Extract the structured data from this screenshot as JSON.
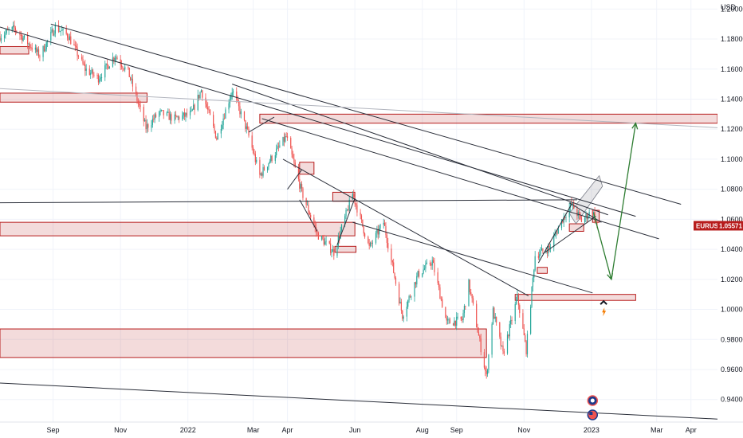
{
  "chart_data": {
    "type": "candlestick",
    "symbol": "EURUSD",
    "currency_label": "USD",
    "last_price_label": "1.05571",
    "last_price": 1.05571,
    "ylim": [
      0.925,
      1.206
    ],
    "xlim": [
      "2021-07-15",
      "2023-04-25"
    ],
    "y_ticks": [
      {
        "v": 1.2,
        "label": "1.20000"
      },
      {
        "v": 1.18,
        "label": "1.18000"
      },
      {
        "v": 1.16,
        "label": "1.16000"
      },
      {
        "v": 1.14,
        "label": "1.14000"
      },
      {
        "v": 1.12,
        "label": "1.12000"
      },
      {
        "v": 1.1,
        "label": "1.10000"
      },
      {
        "v": 1.08,
        "label": "1.08000"
      },
      {
        "v": 1.06,
        "label": "1.06000"
      },
      {
        "v": 1.04,
        "label": "1.04000"
      },
      {
        "v": 1.02,
        "label": "1.02000"
      },
      {
        "v": 1.0,
        "label": "1.00000"
      },
      {
        "v": 0.98,
        "label": "0.98000"
      },
      {
        "v": 0.96,
        "label": "0.96000"
      },
      {
        "v": 0.94,
        "label": "0.94000"
      }
    ],
    "x_ticks": [
      {
        "d": "2021-09-01",
        "label": "Sep"
      },
      {
        "d": "2021-11-01",
        "label": "Nov"
      },
      {
        "d": "2022-01-01",
        "label": "2022"
      },
      {
        "d": "2022-03-01",
        "label": "Mar"
      },
      {
        "d": "2022-04-01",
        "label": "Apr"
      },
      {
        "d": "2022-06-01",
        "label": "Jun"
      },
      {
        "d": "2022-08-01",
        "label": "Aug"
      },
      {
        "d": "2022-09-01",
        "label": "Sep"
      },
      {
        "d": "2022-11-01",
        "label": "Nov"
      },
      {
        "d": "2023-01-01",
        "label": "2023"
      },
      {
        "d": "2023-03-01",
        "label": "Mar"
      },
      {
        "d": "2023-04-01",
        "label": "Apr"
      }
    ],
    "price_path": [
      [
        "2021-07-15",
        1.182
      ],
      [
        "2021-07-28",
        1.187
      ],
      [
        "2021-08-06",
        1.18
      ],
      [
        "2021-08-20",
        1.169
      ],
      [
        "2021-09-03",
        1.188
      ],
      [
        "2021-09-15",
        1.182
      ],
      [
        "2021-09-30",
        1.16
      ],
      [
        "2021-10-12",
        1.154
      ],
      [
        "2021-10-27",
        1.169
      ],
      [
        "2021-11-08",
        1.158
      ],
      [
        "2021-11-24",
        1.121
      ],
      [
        "2021-12-06",
        1.131
      ],
      [
        "2021-12-20",
        1.127
      ],
      [
        "2022-01-04",
        1.13
      ],
      [
        "2022-01-13",
        1.146
      ],
      [
        "2022-01-27",
        1.114
      ],
      [
        "2022-02-10",
        1.146
      ],
      [
        "2022-02-24",
        1.118
      ],
      [
        "2022-03-07",
        1.089
      ],
      [
        "2022-03-14",
        1.097
      ],
      [
        "2022-03-31",
        1.115
      ],
      [
        "2022-04-14",
        1.078
      ],
      [
        "2022-04-28",
        1.05
      ],
      [
        "2022-05-13",
        1.038
      ],
      [
        "2022-05-30",
        1.077
      ],
      [
        "2022-06-14",
        1.041
      ],
      [
        "2022-06-27",
        1.058
      ],
      [
        "2022-07-14",
        0.996
      ],
      [
        "2022-07-28",
        1.023
      ],
      [
        "2022-08-10",
        1.032
      ],
      [
        "2022-08-23",
        0.991
      ],
      [
        "2022-09-06",
        0.993
      ],
      [
        "2022-09-12",
        1.017
      ],
      [
        "2022-09-28",
        0.955
      ],
      [
        "2022-10-04",
        0.999
      ],
      [
        "2022-10-13",
        0.97
      ],
      [
        "2022-10-26",
        1.008
      ],
      [
        "2022-11-03",
        0.973
      ],
      [
        "2022-11-11",
        1.036
      ],
      [
        "2022-11-24",
        1.041
      ],
      [
        "2022-12-05",
        1.059
      ],
      [
        "2022-12-14",
        1.07
      ],
      [
        "2022-12-23",
        1.059
      ],
      [
        "2023-01-02",
        1.066
      ],
      [
        "2023-01-06",
        1.0557
      ]
    ],
    "zones": [
      {
        "d1": "2021-07-15",
        "d2": "2021-08-10",
        "top": 1.175,
        "bottom": 1.17
      },
      {
        "d1": "2021-07-15",
        "d2": "2021-11-25",
        "top": 1.144,
        "bottom": 1.138
      },
      {
        "d1": "2022-03-07",
        "d2": "2023-04-25",
        "top": 1.13,
        "bottom": 1.124
      },
      {
        "d1": "2022-04-12",
        "d2": "2022-04-25",
        "top": 1.098,
        "bottom": 1.09
      },
      {
        "d1": "2022-05-12",
        "d2": "2022-06-01",
        "top": 1.078,
        "bottom": 1.072
      },
      {
        "d1": "2021-07-15",
        "d2": "2022-06-01",
        "top": 1.058,
        "bottom": 1.049
      },
      {
        "d1": "2022-05-14",
        "d2": "2022-06-02",
        "top": 1.042,
        "bottom": 1.038
      },
      {
        "d1": "2022-11-13",
        "d2": "2022-11-22",
        "top": 1.028,
        "bottom": 1.024
      },
      {
        "d1": "2022-10-24",
        "d2": "2023-02-10",
        "top": 1.01,
        "bottom": 1.006
      },
      {
        "d1": "2023-01-02",
        "d2": "2023-01-08",
        "top": 1.066,
        "bottom": 1.058
      },
      {
        "d1": "2021-07-15",
        "d2": "2022-09-28",
        "top": 0.987,
        "bottom": 0.968
      },
      {
        "d1": "2022-12-12",
        "d2": "2022-12-25",
        "top": 1.057,
        "bottom": 1.052
      }
    ],
    "trendlines": [
      {
        "p1": [
          "2021-08-30",
          1.19
        ],
        "p2": [
          "2023-03-23",
          1.07
        ]
      },
      {
        "p1": [
          "2021-07-15",
          1.188
        ],
        "p2": [
          "2023-02-10",
          1.062
        ]
      },
      {
        "p1": [
          "2022-02-10",
          1.15
        ],
        "p2": [
          "2023-01-16",
          1.063
        ]
      },
      {
        "p1": [
          "2022-03-09",
          1.127
        ],
        "p2": [
          "2023-03-03",
          1.047
        ]
      },
      {
        "p1": [
          "2022-05-30",
          1.058
        ],
        "p2": [
          "2023-01-02",
          1.011
        ]
      },
      {
        "p1": [
          "2022-03-28",
          1.1
        ],
        "p2": [
          "2022-11-05",
          1.009
        ]
      },
      {
        "p1": [
          "2021-07-15",
          1.071
        ],
        "p2": [
          "2022-12-19",
          1.073
        ]
      },
      {
        "p1": [
          "2021-07-15",
          0.951
        ],
        "p2": [
          "2023-04-25",
          0.927
        ]
      },
      {
        "p1": [
          "2022-02-25",
          1.118
        ],
        "p2": [
          "2022-03-20",
          1.128
        ]
      },
      {
        "p1": [
          "2022-04-01",
          1.08
        ],
        "p2": [
          "2022-04-14",
          1.093
        ]
      },
      {
        "p1": [
          "2022-04-12",
          1.073
        ],
        "p2": [
          "2022-04-28",
          1.052
        ]
      },
      {
        "p1": [
          "2022-05-16",
          1.043
        ],
        "p2": [
          "2022-06-01",
          1.074
        ]
      },
      {
        "p1": [
          "2022-11-14",
          1.031
        ],
        "p2": [
          "2022-12-14",
          1.07
        ]
      },
      {
        "p1": [
          "2022-11-18",
          1.037
        ],
        "p2": [
          "2023-01-05",
          1.062
        ]
      },
      {
        "p1": [
          "2022-12-12",
          1.071
        ],
        "p2": [
          "2023-01-10",
          1.058
        ]
      }
    ],
    "thin_lines": [
      {
        "p1": [
          "2021-07-15",
          1.147
        ],
        "p2": [
          "2023-04-25",
          1.121
        ]
      }
    ],
    "channel": [
      [
        "2022-12-12",
        1.064
      ],
      [
        "2023-01-08",
        1.089
      ],
      [
        "2023-01-11",
        1.082
      ],
      [
        "2022-12-18",
        1.057
      ]
    ],
    "projection": [
      [
        "2023-01-03",
        1.064
      ],
      [
        "2023-01-19",
        1.02
      ],
      [
        "2023-02-10",
        1.124
      ]
    ],
    "projection_color": "#2e7d32"
  }
}
